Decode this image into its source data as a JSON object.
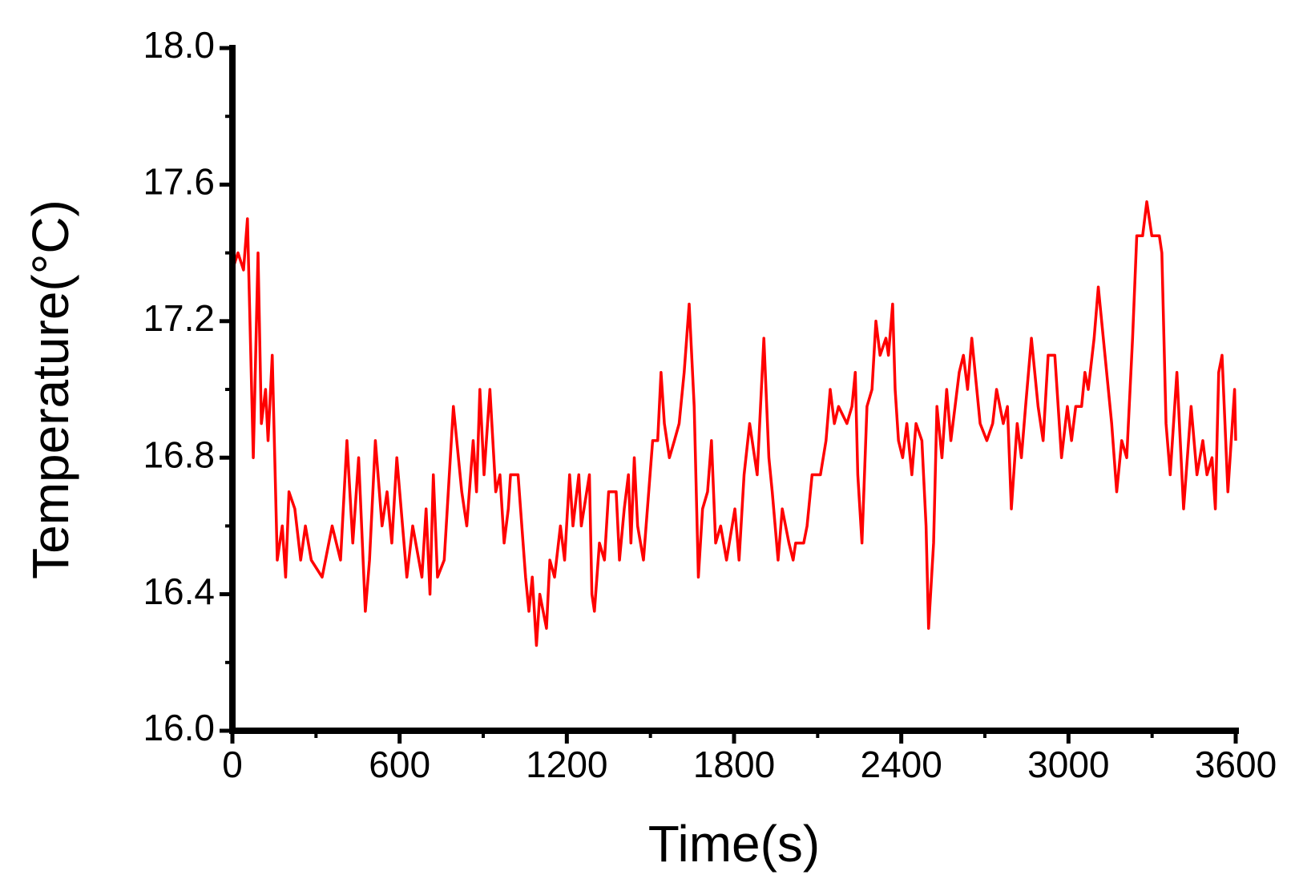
{
  "chart_data": {
    "type": "line",
    "x_label": "Time(s)",
    "y_label": "Temperature(°C)",
    "xlim": [
      0,
      3600
    ],
    "xticks": [
      0,
      600,
      1200,
      1800,
      2400,
      3000,
      3600
    ],
    "ylim": [
      16.0,
      18.0
    ],
    "yticks": [
      {
        "value": 16.0,
        "label": "16.0"
      },
      16.4,
      16.8,
      17.2,
      17.6,
      {
        "value": 18.0,
        "label": "18.0"
      }
    ],
    "x": [
      0,
      20,
      40,
      54,
      75,
      92,
      104,
      119,
      128,
      143,
      161,
      179,
      191,
      203,
      224,
      245,
      262,
      283,
      322,
      358,
      388,
      411,
      432,
      453,
      477,
      492,
      513,
      537,
      555,
      572,
      590,
      626,
      647,
      680,
      695,
      709,
      721,
      736,
      760,
      793,
      823,
      841,
      864,
      876,
      888,
      903,
      924,
      945,
      960,
      975,
      990,
      998,
      1025,
      1043,
      1052,
      1064,
      1076,
      1091,
      1103,
      1127,
      1139,
      1156,
      1177,
      1192,
      1210,
      1222,
      1243,
      1252,
      1281,
      1290,
      1299,
      1317,
      1335,
      1350,
      1377,
      1389,
      1406,
      1421,
      1430,
      1442,
      1454,
      1475,
      1508,
      1526,
      1538,
      1550,
      1568,
      1586,
      1603,
      1621,
      1639,
      1657,
      1672,
      1687,
      1705,
      1719,
      1734,
      1752,
      1773,
      1803,
      1818,
      1836,
      1856,
      1883,
      1907,
      1925,
      1937,
      1958,
      1973,
      1997,
      2012,
      2021,
      2050,
      2062,
      2080,
      2110,
      2130,
      2145,
      2160,
      2175,
      2205,
      2223,
      2235,
      2244,
      2259,
      2277,
      2295,
      2309,
      2324,
      2345,
      2354,
      2369,
      2378,
      2390,
      2405,
      2420,
      2438,
      2453,
      2474,
      2489,
      2498,
      2516,
      2528,
      2546,
      2563,
      2578,
      2593,
      2608,
      2623,
      2638,
      2653,
      2683,
      2707,
      2728,
      2742,
      2766,
      2781,
      2795,
      2816,
      2831,
      2846,
      2867,
      2891,
      2909,
      2927,
      2951,
      2975,
      2996,
      3011,
      3026,
      3047,
      3059,
      3071,
      3092,
      3107,
      3131,
      3155,
      3173,
      3191,
      3209,
      3230,
      3245,
      3266,
      3281,
      3299,
      3326,
      3335,
      3350,
      3365,
      3389,
      3413,
      3440,
      3461,
      3482,
      3497,
      3515,
      3527,
      3539,
      3551,
      3572,
      3596,
      3600
    ],
    "series": [
      {
        "color": "#ff0000",
        "values": [
          17.35,
          17.4,
          17.35,
          17.5,
          16.8,
          17.4,
          16.9,
          17.0,
          16.85,
          17.1,
          16.5,
          16.6,
          16.45,
          16.7,
          16.65,
          16.5,
          16.6,
          16.5,
          16.45,
          16.6,
          16.5,
          16.85,
          16.55,
          16.8,
          16.35,
          16.5,
          16.85,
          16.6,
          16.7,
          16.55,
          16.8,
          16.45,
          16.6,
          16.45,
          16.65,
          16.4,
          16.75,
          16.45,
          16.5,
          16.95,
          16.7,
          16.6,
          16.85,
          16.7,
          17.0,
          16.75,
          17.0,
          16.7,
          16.75,
          16.55,
          16.65,
          16.75,
          16.75,
          16.55,
          16.45,
          16.35,
          16.45,
          16.25,
          16.4,
          16.3,
          16.5,
          16.45,
          16.6,
          16.5,
          16.75,
          16.6,
          16.75,
          16.6,
          16.75,
          16.4,
          16.35,
          16.55,
          16.5,
          16.7,
          16.7,
          16.5,
          16.65,
          16.75,
          16.55,
          16.8,
          16.6,
          16.5,
          16.85,
          16.85,
          17.05,
          16.9,
          16.8,
          16.85,
          16.9,
          17.05,
          17.25,
          16.95,
          16.45,
          16.65,
          16.7,
          16.85,
          16.55,
          16.6,
          16.5,
          16.65,
          16.5,
          16.75,
          16.9,
          16.75,
          17.15,
          16.8,
          16.7,
          16.5,
          16.65,
          16.55,
          16.5,
          16.55,
          16.55,
          16.6,
          16.75,
          16.75,
          16.85,
          17.0,
          16.9,
          16.95,
          16.9,
          16.95,
          17.05,
          16.75,
          16.55,
          16.95,
          17.0,
          17.2,
          17.1,
          17.15,
          17.1,
          17.25,
          17.0,
          16.85,
          16.8,
          16.9,
          16.75,
          16.9,
          16.85,
          16.6,
          16.3,
          16.55,
          16.95,
          16.8,
          17.0,
          16.85,
          16.95,
          17.05,
          17.1,
          17.0,
          17.15,
          16.9,
          16.85,
          16.9,
          17.0,
          16.9,
          16.95,
          16.65,
          16.9,
          16.8,
          16.95,
          17.15,
          16.95,
          16.85,
          17.1,
          17.1,
          16.8,
          16.95,
          16.85,
          16.95,
          16.95,
          17.05,
          17.0,
          17.15,
          17.3,
          17.1,
          16.9,
          16.7,
          16.85,
          16.8,
          17.15,
          17.45,
          17.45,
          17.55,
          17.45,
          17.45,
          17.4,
          16.9,
          16.75,
          17.05,
          16.65,
          16.95,
          16.75,
          16.85,
          16.75,
          16.8,
          16.65,
          17.05,
          17.1,
          16.7,
          17.0,
          16.85
        ]
      }
    ]
  }
}
